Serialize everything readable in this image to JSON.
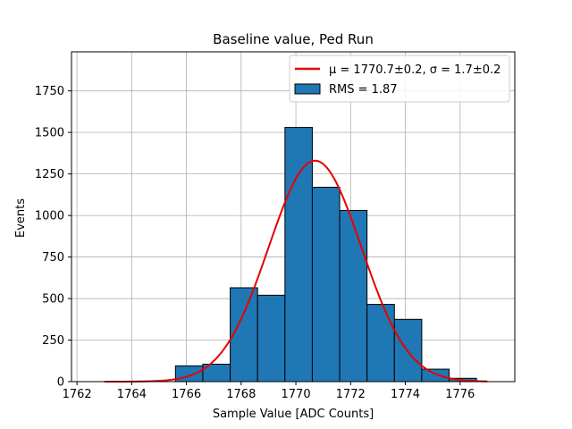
{
  "chart_data": {
    "type": "bar",
    "title": "Baseline value, Ped Run",
    "xlabel": "Sample Value [ADC Counts]",
    "ylabel": "Events",
    "xlim": [
      1761.8,
      1778.0
    ],
    "ylim": [
      0,
      1985
    ],
    "xticks": [
      1762,
      1764,
      1766,
      1768,
      1770,
      1772,
      1774,
      1776
    ],
    "yticks": [
      0,
      250,
      500,
      750,
      1000,
      1250,
      1500,
      1750
    ],
    "grid": true,
    "legend_position": "top-right",
    "histogram": {
      "name": "RMS = 1.87",
      "color": "#1f77b4",
      "edge_color": "#000000",
      "bins": [
        {
          "x0": 1765.6,
          "x1": 1766.6,
          "count": 95
        },
        {
          "x0": 1766.6,
          "x1": 1767.6,
          "count": 105
        },
        {
          "x0": 1767.6,
          "x1": 1768.6,
          "count": 565
        },
        {
          "x0": 1768.6,
          "x1": 1769.6,
          "count": 520
        },
        {
          "x0": 1769.6,
          "x1": 1770.6,
          "count": 1530
        },
        {
          "x0": 1770.6,
          "x1": 1771.6,
          "count": 1170
        },
        {
          "x0": 1771.6,
          "x1": 1772.6,
          "count": 1030
        },
        {
          "x0": 1772.6,
          "x1": 1773.6,
          "count": 465
        },
        {
          "x0": 1773.6,
          "x1": 1774.6,
          "count": 375
        },
        {
          "x0": 1774.6,
          "x1": 1775.6,
          "count": 75
        },
        {
          "x0": 1775.6,
          "x1": 1776.6,
          "count": 20
        }
      ]
    },
    "fit": {
      "name": "μ = 1770.7±0.2, σ = 1.7±0.2",
      "type": "gaussian",
      "color": "#e60000",
      "mu": 1770.7,
      "sigma": 1.7,
      "amplitude": 1330,
      "x_range": [
        1763,
        1777
      ]
    }
  }
}
